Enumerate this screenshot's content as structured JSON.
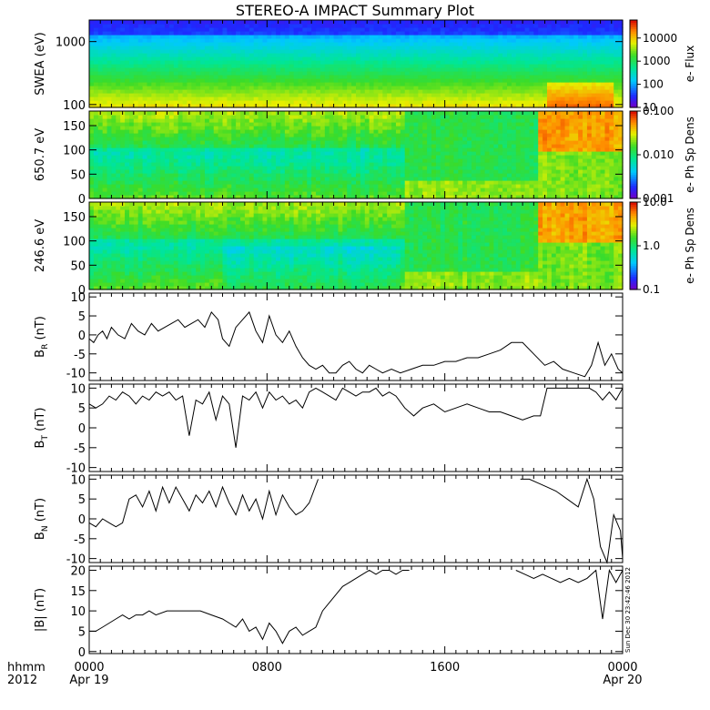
{
  "title": "STEREO-A IMPACT Summary Plot",
  "stamp": "Sun Dec 30 23:42:46 2012",
  "time_axis": {
    "row_label_1": "hhmm",
    "row_label_2": "2012",
    "ticks": [
      {
        "hour": 0,
        "label": "0000",
        "date": "Apr 19"
      },
      {
        "hour": 8,
        "label": "0800",
        "date": ""
      },
      {
        "hour": 16,
        "label": "1600",
        "date": ""
      },
      {
        "hour": 24,
        "label": "0000",
        "date": "Apr 20"
      }
    ]
  },
  "chart_data": [
    {
      "type": "heatmap",
      "id": "swea",
      "ylabel": "SWEA (eV)",
      "yscale": "log",
      "ylim": [
        90,
        2200
      ],
      "yticks": [
        {
          "v": 100,
          "label": "100"
        },
        {
          "v": 1000,
          "label": "1000"
        }
      ],
      "x_range_hours": [
        0,
        24
      ],
      "colorbar": {
        "label": "e- Flux",
        "scale": "log",
        "range": [
          10,
          60000
        ],
        "ticks": [
          {
            "v": 10,
            "label": "10"
          },
          {
            "v": 100,
            "label": "100"
          },
          {
            "v": 1000,
            "label": "1000"
          },
          {
            "v": 10000,
            "label": "10000"
          }
        ]
      },
      "description_values": {
        "energy_bins_eV": [
          100,
          200,
          400,
          700,
          1000,
          1500,
          2000
        ],
        "segments_hours": [
          0,
          2,
          10,
          19.5,
          20.5,
          23.5,
          24
        ],
        "log_flux_by_segment": [
          [
            4.0,
            3.6,
            3.1,
            2.7,
            2.3,
            1.6,
            1.1
          ],
          [
            3.8,
            3.5,
            3.1,
            2.8,
            2.4,
            1.7,
            1.2
          ],
          [
            3.6,
            3.4,
            3.1,
            2.8,
            2.4,
            1.7,
            1.2
          ],
          [
            3.6,
            3.4,
            3.0,
            2.7,
            2.3,
            1.6,
            1.1
          ],
          [
            4.6,
            4.0,
            3.2,
            2.7,
            2.3,
            1.6,
            1.1
          ],
          [
            4.5,
            3.8,
            3.0,
            2.5,
            2.0,
            1.3,
            0.9
          ]
        ]
      }
    },
    {
      "type": "heatmap",
      "id": "pad650",
      "ylabel": "650.7 eV",
      "ylim": [
        0,
        180
      ],
      "yticks": [
        {
          "v": 0,
          "label": "0"
        },
        {
          "v": 50,
          "label": "50"
        },
        {
          "v": 100,
          "label": "100"
        },
        {
          "v": 150,
          "label": "150"
        }
      ],
      "x_range_hours": [
        0,
        24
      ],
      "colorbar": {
        "label": "e- Ph Sp Dens",
        "scale": "log",
        "range": [
          0.001,
          0.1
        ],
        "ticks": [
          {
            "v": 0.001,
            "label": "0.001"
          },
          {
            "v": 0.01,
            "label": "0.010"
          },
          {
            "v": 0.1,
            "label": "0.100"
          }
        ]
      }
    },
    {
      "type": "heatmap",
      "id": "pad246",
      "ylabel": "246.6 eV",
      "ylim": [
        0,
        180
      ],
      "yticks": [
        {
          "v": 0,
          "label": "0"
        },
        {
          "v": 50,
          "label": "50"
        },
        {
          "v": 100,
          "label": "100"
        },
        {
          "v": 150,
          "label": "150"
        }
      ],
      "x_range_hours": [
        0,
        24
      ],
      "colorbar": {
        "label": "e- Ph Sp Dens",
        "scale": "log",
        "range": [
          0.1,
          10
        ],
        "ticks": [
          {
            "v": 0.1,
            "label": "0.1"
          },
          {
            "v": 1,
            "label": "1.0"
          },
          {
            "v": 10,
            "label": "10.0"
          }
        ]
      }
    },
    {
      "type": "line",
      "id": "br",
      "ylabel": "B_R (nT)",
      "ylim": [
        -12,
        11
      ],
      "yticks": [
        {
          "v": -10,
          "label": "-10"
        },
        {
          "v": -5,
          "label": "-5"
        },
        {
          "v": 0,
          "label": "0"
        },
        {
          "v": 5,
          "label": "5"
        },
        {
          "v": 10,
          "label": "10"
        }
      ],
      "x": [
        0,
        0.2,
        0.4,
        0.6,
        0.8,
        1.0,
        1.3,
        1.6,
        1.9,
        2.2,
        2.5,
        2.8,
        3.1,
        3.4,
        3.7,
        4.0,
        4.3,
        4.6,
        4.9,
        5.2,
        5.5,
        5.8,
        6.0,
        6.3,
        6.6,
        6.9,
        7.2,
        7.5,
        7.8,
        8.1,
        8.4,
        8.7,
        9.0,
        9.3,
        9.6,
        9.9,
        10.2,
        10.5,
        10.8,
        11.1,
        11.4,
        11.7,
        12.0,
        12.3,
        12.6,
        12.9,
        13.2,
        13.6,
        14.0,
        14.5,
        15.0,
        15.5,
        16.0,
        16.5,
        17.0,
        17.5,
        18.0,
        18.5,
        19.0,
        19.5,
        20.0,
        20.5,
        20.9,
        21.3,
        21.8,
        22.3,
        22.6,
        22.9,
        23.2,
        23.5,
        23.8,
        24.0
      ],
      "y": [
        -1,
        -2,
        0,
        1,
        -1,
        2,
        0,
        -1,
        3,
        1,
        0,
        3,
        1,
        2,
        3,
        4,
        2,
        3,
        4,
        2,
        6,
        4,
        -1,
        -3,
        2,
        4,
        6,
        1,
        -2,
        5,
        0,
        -2,
        1,
        -3,
        -6,
        -8,
        -9,
        -8,
        -10,
        -10,
        -8,
        -7,
        -9,
        -10,
        -8,
        -9,
        -10,
        -9,
        -10,
        -9,
        -8,
        -8,
        -7,
        -7,
        -6,
        -6,
        -5,
        -4,
        -2,
        -2,
        -5,
        -8,
        -7,
        -9,
        -10,
        -11,
        -8,
        -2,
        -8,
        -5,
        -9,
        -10
      ]
    },
    {
      "type": "line",
      "id": "bt",
      "ylabel": "B_T (nT)",
      "ylim": [
        -11,
        11
      ],
      "yticks": [
        {
          "v": -10,
          "label": "-10"
        },
        {
          "v": -5,
          "label": "-5"
        },
        {
          "v": 0,
          "label": "0"
        },
        {
          "v": 5,
          "label": "5"
        },
        {
          "v": 10,
          "label": "10"
        }
      ],
      "x": [
        0,
        0.3,
        0.6,
        0.9,
        1.2,
        1.5,
        1.8,
        2.1,
        2.4,
        2.7,
        3.0,
        3.3,
        3.6,
        3.9,
        4.2,
        4.5,
        4.8,
        5.1,
        5.4,
        5.7,
        6.0,
        6.3,
        6.6,
        6.9,
        7.2,
        7.5,
        7.8,
        8.1,
        8.4,
        8.7,
        9.0,
        9.3,
        9.6,
        9.9,
        10.2,
        10.5,
        10.8,
        11.1,
        11.4,
        11.7,
        12.0,
        12.3,
        12.6,
        12.9,
        13.2,
        13.5,
        13.8,
        14.2,
        14.6,
        15.0,
        15.5,
        16.0,
        16.5,
        17.0,
        17.5,
        18.0,
        18.5,
        19.0,
        19.5,
        20.0,
        20.3,
        20.6,
        21.0,
        21.5,
        22.0,
        22.5,
        22.8,
        23.1,
        23.4,
        23.7,
        24.0
      ],
      "y": [
        6,
        5,
        6,
        8,
        7,
        9,
        8,
        6,
        8,
        7,
        9,
        8,
        9,
        7,
        8,
        -2,
        7,
        6,
        9,
        2,
        8,
        6,
        -5,
        8,
        7,
        9,
        5,
        9,
        7,
        8,
        6,
        7,
        5,
        9,
        10,
        9,
        8,
        7,
        10,
        9,
        8,
        9,
        9,
        10,
        8,
        9,
        8,
        5,
        3,
        5,
        6,
        4,
        5,
        6,
        5,
        4,
        4,
        3,
        2,
        3,
        3,
        10,
        10,
        10,
        10,
        10,
        9,
        7,
        9,
        7,
        10
      ]
    },
    {
      "type": "line",
      "id": "bn",
      "ylabel": "B_N (nT)",
      "ylim": [
        -11,
        11
      ],
      "yticks": [
        {
          "v": -10,
          "label": "-10"
        },
        {
          "v": -5,
          "label": "-5"
        },
        {
          "v": 0,
          "label": "0"
        },
        {
          "v": 5,
          "label": "5"
        },
        {
          "v": 10,
          "label": "10"
        }
      ],
      "x": [
        0,
        0.3,
        0.6,
        0.9,
        1.2,
        1.5,
        1.8,
        2.1,
        2.4,
        2.7,
        3.0,
        3.3,
        3.6,
        3.9,
        4.2,
        4.5,
        4.8,
        5.1,
        5.4,
        5.7,
        6.0,
        6.3,
        6.6,
        6.9,
        7.2,
        7.5,
        7.8,
        8.1,
        8.4,
        8.7,
        9.0,
        9.3,
        9.6,
        9.9,
        10.1,
        10.3
      ],
      "y": [
        -1,
        -2,
        0,
        -1,
        -2,
        -1,
        5,
        6,
        3,
        7,
        2,
        8,
        4,
        8,
        5,
        2,
        6,
        4,
        7,
        3,
        8,
        4,
        1,
        6,
        2,
        5,
        0,
        7,
        1,
        6,
        3,
        1,
        2,
        4,
        7,
        10
      ],
      "x2": [
        19.4,
        19.8,
        20.2,
        20.6,
        21.0,
        21.5,
        22.0,
        22.4,
        22.7,
        23.0,
        23.3,
        23.6,
        23.9,
        24.0
      ],
      "y2": [
        10,
        10,
        9,
        8,
        7,
        5,
        3,
        10,
        5,
        -7,
        -11,
        1,
        -3,
        -10
      ]
    },
    {
      "type": "line",
      "id": "bmag",
      "ylabel": "|B| (nT)",
      "ylim": [
        -0.5,
        21
      ],
      "yticks": [
        {
          "v": 0,
          "label": "0"
        },
        {
          "v": 5,
          "label": "5"
        },
        {
          "v": 10,
          "label": "10"
        },
        {
          "v": 15,
          "label": "15"
        },
        {
          "v": 20,
          "label": "20"
        }
      ],
      "x": [
        0,
        0.3,
        0.6,
        0.9,
        1.2,
        1.5,
        1.8,
        2.1,
        2.4,
        2.7,
        3.0,
        3.5,
        4.0,
        4.5,
        5.0,
        5.5,
        6.0,
        6.3,
        6.6,
        6.9,
        7.2,
        7.5,
        7.8,
        8.1,
        8.4,
        8.7,
        9.0,
        9.3,
        9.6,
        9.9,
        10.2,
        10.5,
        10.8,
        11.1,
        11.4,
        11.7,
        12.0,
        12.3,
        12.6,
        12.9,
        13.2,
        13.5,
        13.8,
        14.1,
        14.4
      ],
      "y": [
        5,
        5,
        6,
        7,
        8,
        9,
        8,
        9,
        9,
        10,
        9,
        10,
        10,
        10,
        10,
        9,
        8,
        7,
        6,
        8,
        5,
        6,
        3,
        7,
        5,
        2,
        5,
        6,
        4,
        5,
        6,
        10,
        12,
        14,
        16,
        17,
        18,
        19,
        20,
        19,
        20,
        20,
        19,
        20,
        20
      ],
      "x2": [
        19.2,
        19.6,
        20.0,
        20.4,
        20.8,
        21.2,
        21.6,
        22.0,
        22.4,
        22.8,
        23.1,
        23.4,
        23.7,
        24.0
      ],
      "y2": [
        20,
        19,
        18,
        19,
        18,
        17,
        18,
        17,
        18,
        20,
        8,
        20,
        17,
        20
      ]
    }
  ]
}
